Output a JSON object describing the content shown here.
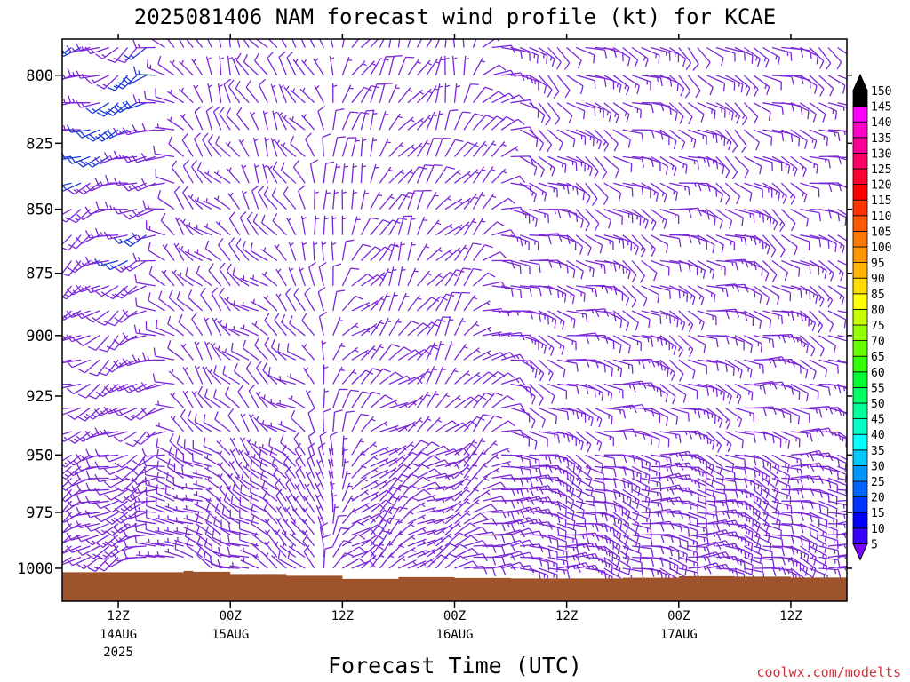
{
  "chart_data": {
    "type": "wind-barb-time-height",
    "title": "2025081406 NAM forecast wind profile (kt) for KCAE",
    "xlabel": "Forecast Time (UTC)",
    "ylabel": "",
    "y_scale": "pressure-hPa",
    "ylim": [
      1015,
      787
    ],
    "yticks": [
      800,
      825,
      850,
      875,
      900,
      925,
      950,
      975,
      1000
    ],
    "xlim_hours": [
      6,
      90
    ],
    "x_ticks": [
      {
        "hour": 12,
        "label": "12Z",
        "sub1": "14AUG",
        "sub2": "2025"
      },
      {
        "hour": 24,
        "label": "00Z",
        "sub1": "15AUG",
        "sub2": ""
      },
      {
        "hour": 36,
        "label": "12Z",
        "sub1": "",
        "sub2": ""
      },
      {
        "hour": 48,
        "label": "00Z",
        "sub1": "16AUG",
        "sub2": ""
      },
      {
        "hour": 60,
        "label": "12Z",
        "sub1": "",
        "sub2": ""
      },
      {
        "hour": 72,
        "label": "00Z",
        "sub1": "17AUG",
        "sub2": ""
      },
      {
        "hour": 84,
        "label": "12Z",
        "sub1": "",
        "sub2": ""
      }
    ],
    "barb_columns_hours": [
      6,
      7,
      8,
      9,
      10,
      11,
      12,
      13,
      14,
      15,
      16,
      17,
      18,
      19,
      20,
      21,
      22,
      23,
      24,
      25,
      26,
      27,
      28,
      29,
      30,
      31,
      32,
      33,
      34,
      35,
      36,
      37,
      38,
      39,
      40,
      41,
      42,
      43,
      44,
      45,
      46,
      47,
      48,
      49,
      50,
      51,
      52,
      53,
      54,
      55,
      56,
      57,
      58,
      59,
      60,
      61,
      62,
      63,
      64,
      65,
      66,
      67,
      68,
      69,
      70,
      71,
      72,
      73,
      74,
      75,
      76,
      77,
      78,
      79,
      80,
      81,
      82,
      83,
      84,
      85,
      86,
      87,
      88,
      89,
      90
    ],
    "barb_levels_hpa": [
      790,
      800,
      810,
      820,
      830,
      840,
      850,
      860,
      870,
      880,
      890,
      900,
      910,
      920,
      930,
      940,
      950,
      955,
      960,
      965,
      970,
      975,
      980,
      985,
      990,
      995,
      1000
    ],
    "wind_model": {
      "note": "NAM-like profile: stronger W winds aloft early, weak variable flow mid-period, light NE-E low levels late",
      "phases": [
        {
          "hours": [
            6,
            18
          ],
          "dir_upper_deg": 245,
          "spd_upper_kt": 17,
          "dir_lower_deg": 240,
          "spd_lower_kt": 10
        },
        {
          "hours": [
            19,
            36
          ],
          "dir_upper_deg": 330,
          "spd_upper_kt": 7,
          "dir_lower_deg": 300,
          "spd_lower_kt": 8
        },
        {
          "hours": [
            37,
            54
          ],
          "dir_upper_deg": 20,
          "spd_upper_kt": 6,
          "dir_lower_deg": 60,
          "spd_lower_kt": 7
        },
        {
          "hours": [
            55,
            90
          ],
          "dir_upper_deg": 120,
          "spd_upper_kt": 11,
          "dir_lower_deg": 100,
          "spd_lower_kt": 14
        }
      ]
    },
    "surface_pressure_hpa": [
      {
        "hour": 6,
        "p": 1001.8
      },
      {
        "hour": 18,
        "p": 1001.8
      },
      {
        "hour": 19,
        "p": 1001.2
      },
      {
        "hour": 20,
        "p": 1001.6
      },
      {
        "hour": 24,
        "p": 1002.6
      },
      {
        "hour": 30,
        "p": 1003.4
      },
      {
        "hour": 36,
        "p": 1004.8
      },
      {
        "hour": 42,
        "p": 1004.0
      },
      {
        "hour": 48,
        "p": 1004.4
      },
      {
        "hour": 54,
        "p": 1004.6
      },
      {
        "hour": 60,
        "p": 1004.6
      },
      {
        "hour": 66,
        "p": 1004.3
      },
      {
        "hour": 72,
        "p": 1003.6
      },
      {
        "hour": 78,
        "p": 1003.8
      },
      {
        "hour": 84,
        "p": 1004.2
      },
      {
        "hour": 90,
        "p": 1004.2
      }
    ],
    "terrain_color": "#9e532d",
    "barb_color": "#7a28d6",
    "barb_color_strong": "#1f3ad8",
    "colorbar": {
      "labels": [
        "5",
        "10",
        "15",
        "20",
        "25",
        "30",
        "35",
        "40",
        "45",
        "50",
        "55",
        "60",
        "65",
        "70",
        "75",
        "80",
        "85",
        "90",
        "95",
        "100",
        "105",
        "110",
        "115",
        "120",
        "125",
        "130",
        "135",
        "140",
        "145",
        "150"
      ],
      "colors": [
        "#7a00ff",
        "#3a00ff",
        "#0000ff",
        "#0032ff",
        "#0064ff",
        "#0096ff",
        "#00c8ff",
        "#00ffff",
        "#00ffc8",
        "#00ff96",
        "#00ff64",
        "#00ff32",
        "#32ff00",
        "#64ff00",
        "#96ff00",
        "#c8ff00",
        "#ffff00",
        "#ffdc00",
        "#ffb400",
        "#ff9600",
        "#ff7800",
        "#ff5a00",
        "#ff3200",
        "#ff0000",
        "#ff0032",
        "#ff0064",
        "#ff0096",
        "#ff00c8",
        "#ff00ff",
        "#000000"
      ]
    }
  },
  "credit": "coolwx.com/modelts"
}
